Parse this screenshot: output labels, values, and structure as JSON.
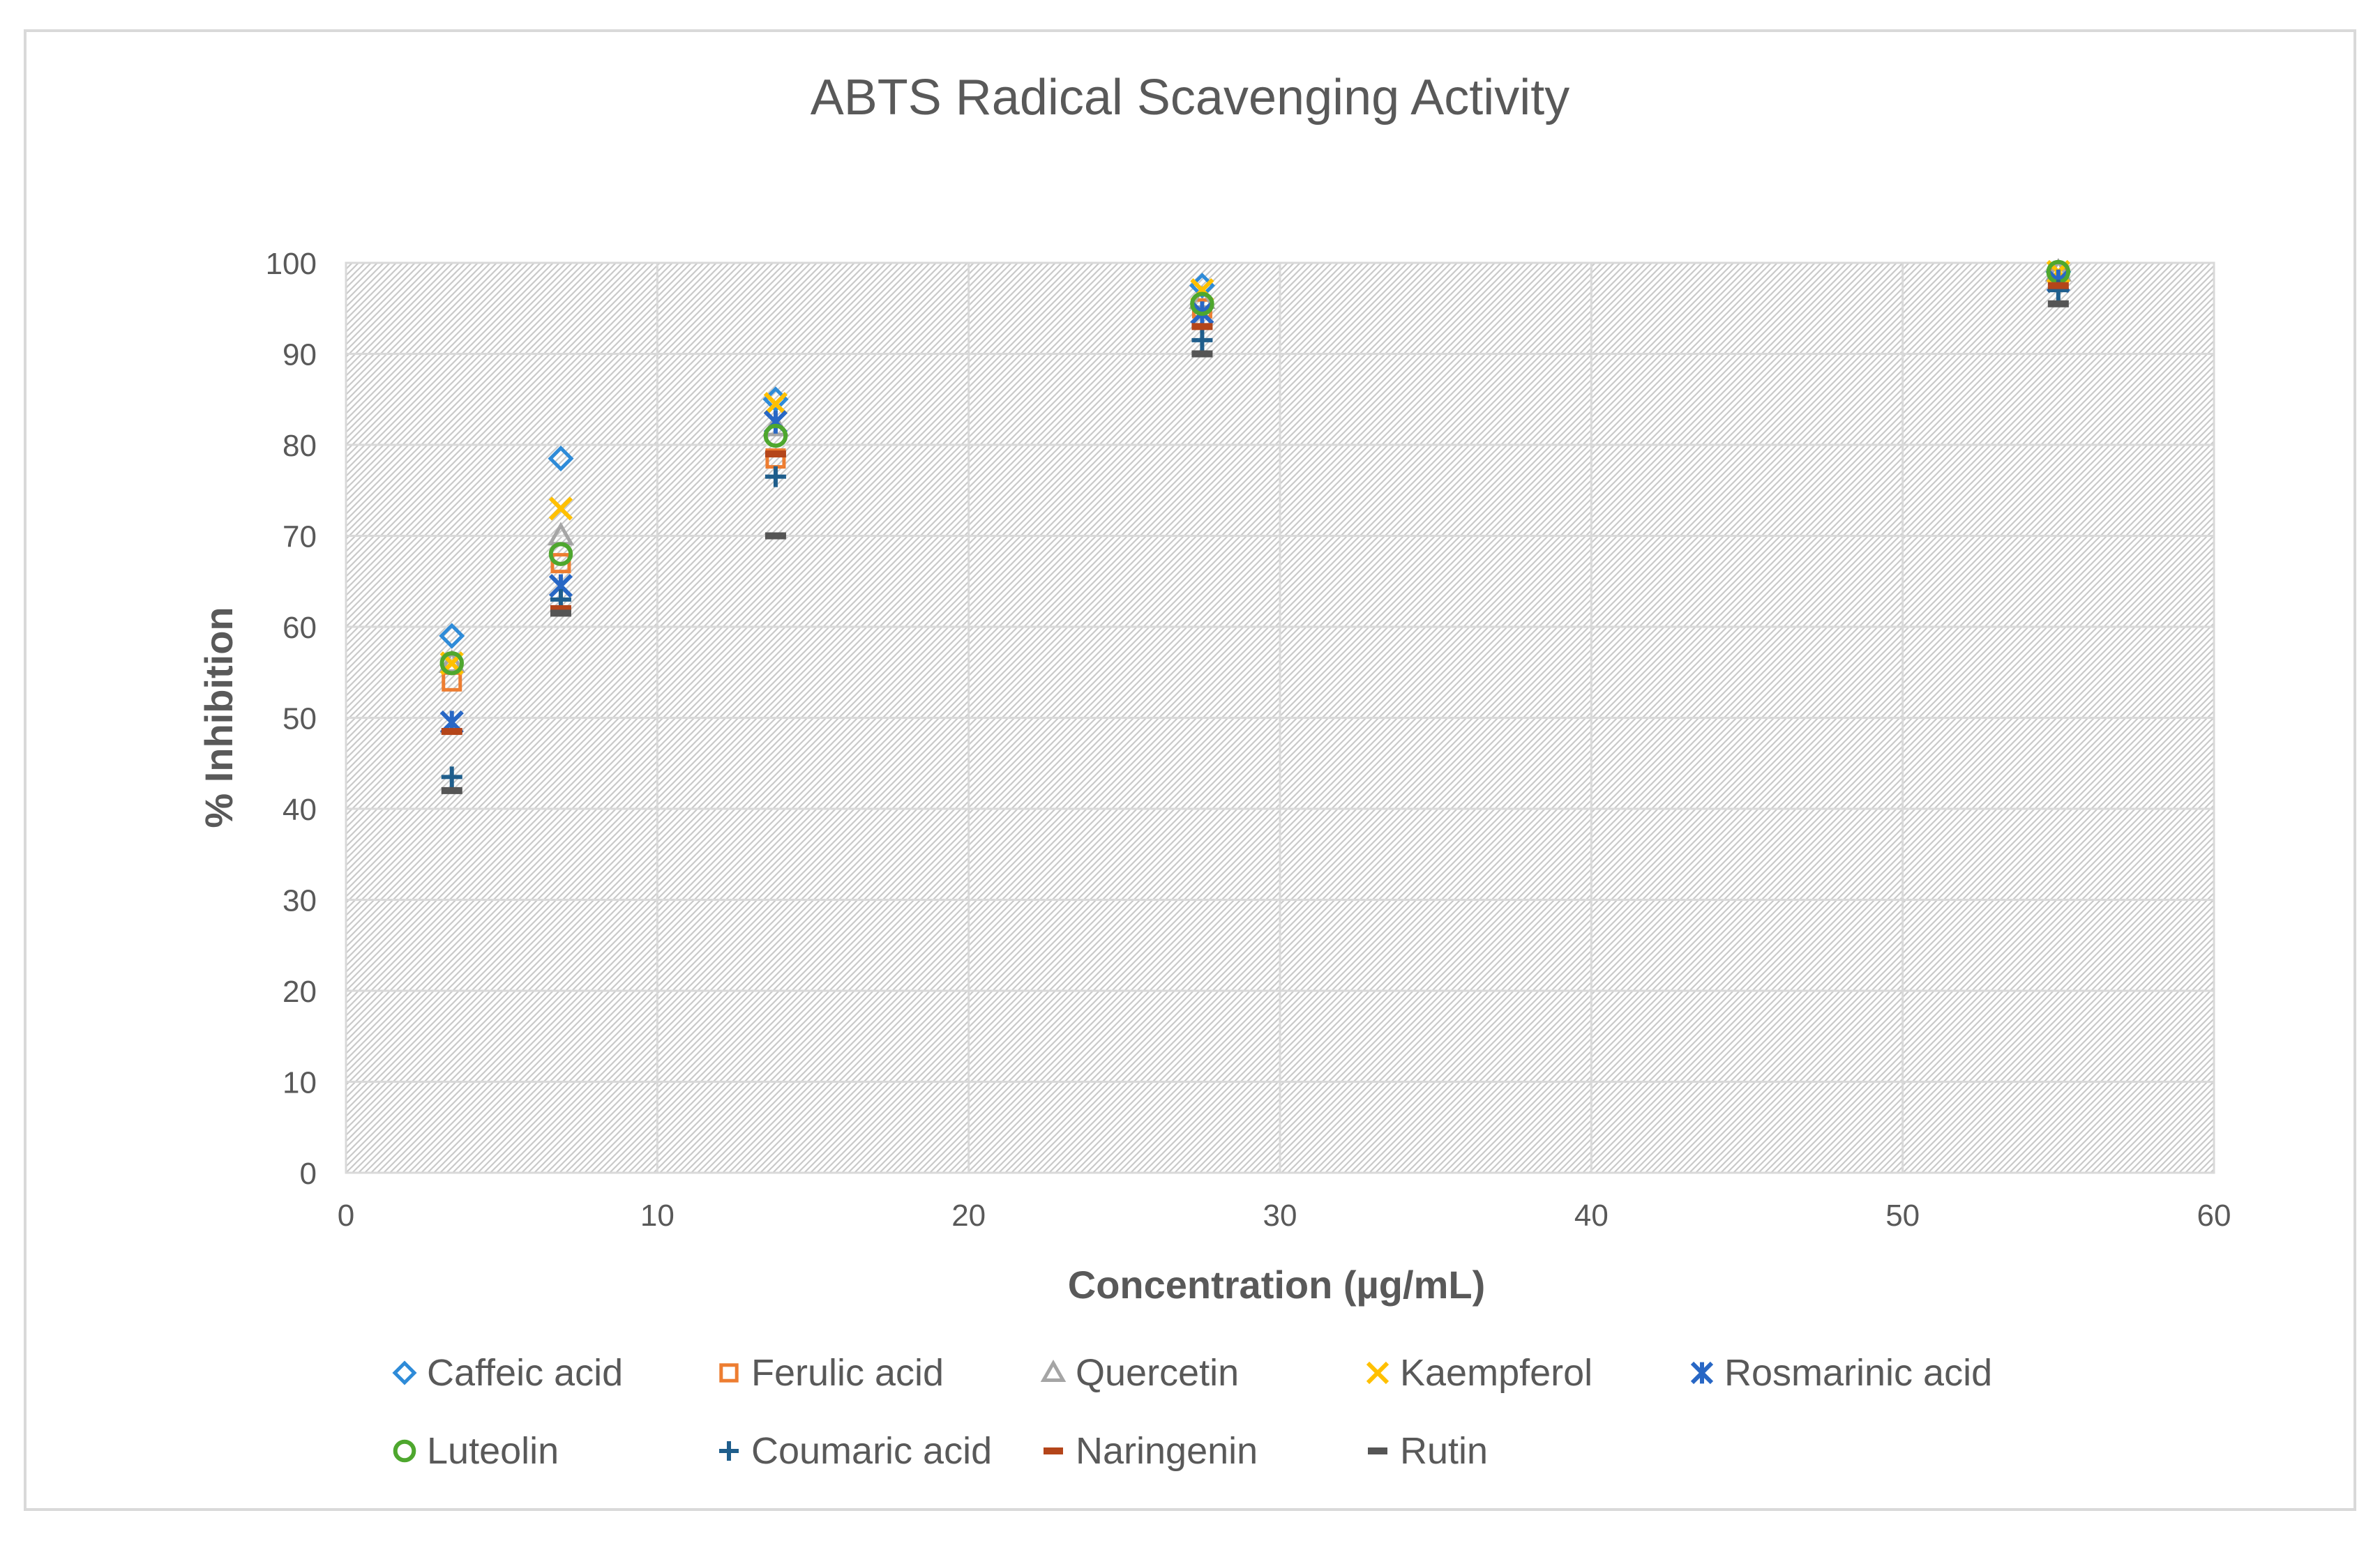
{
  "chart_data": {
    "type": "scatter",
    "title": "ABTS Radical Scavenging Activity",
    "xlabel": "Concentration (µg/mL)",
    "ylabel": "% Inhibition",
    "xlim": [
      0,
      60
    ],
    "ylim": [
      0,
      100
    ],
    "xticks": [
      0,
      10,
      20,
      30,
      40,
      50,
      60
    ],
    "yticks": [
      0,
      10,
      20,
      30,
      40,
      50,
      60,
      70,
      80,
      90,
      100
    ],
    "grid": true,
    "legend_position": "bottom",
    "x": [
      3.4,
      6.9,
      13.8,
      27.5,
      55
    ],
    "series": [
      {
        "name": "Caffeic acid",
        "marker": "diamond",
        "color": "#2E8BD8",
        "values": [
          59,
          78.5,
          85,
          97.5,
          99
        ]
      },
      {
        "name": "Ferulic acid",
        "marker": "square",
        "color": "#ED7D31",
        "values": [
          54,
          67,
          78.5,
          95,
          99
        ]
      },
      {
        "name": "Quercetin",
        "marker": "triangle",
        "color": "#A5A5A5",
        "values": [
          56,
          70,
          82,
          96,
          99
        ]
      },
      {
        "name": "Kaempferol",
        "marker": "x",
        "color": "#FFC000",
        "values": [
          56,
          73,
          84.5,
          97,
          99
        ]
      },
      {
        "name": "Rosmarinic acid",
        "marker": "star",
        "color": "#2867C5",
        "values": [
          49.5,
          64.5,
          82.5,
          94.5,
          98
        ]
      },
      {
        "name": "Luteolin",
        "marker": "circle",
        "color": "#4EA72E",
        "values": [
          56,
          68,
          81,
          95.5,
          99
        ]
      },
      {
        "name": "Coumaric acid",
        "marker": "plus",
        "color": "#1F5E8C",
        "values": [
          43.5,
          63,
          76.5,
          91.5,
          97
        ]
      },
      {
        "name": "Naringenin",
        "marker": "dash",
        "color": "#B4451A",
        "values": [
          48.5,
          62,
          79,
          93,
          97.5
        ]
      },
      {
        "name": "Rutin",
        "marker": "dash",
        "color": "#555555",
        "values": [
          42,
          61.5,
          70,
          90,
          95.5
        ]
      }
    ]
  }
}
